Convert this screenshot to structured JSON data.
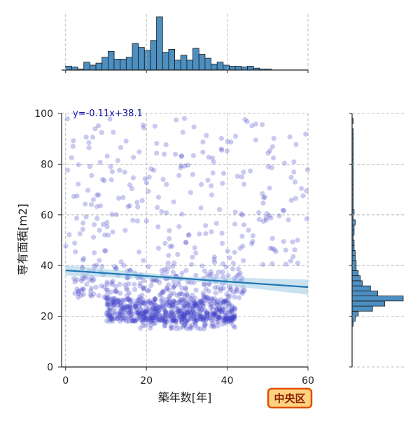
{
  "chart_data": {
    "type": "scatter",
    "xlabel": "築年数[年]",
    "ylabel": "専有面積[m2]",
    "xlim": [
      -1,
      60
    ],
    "ylim": [
      0,
      100
    ],
    "x_ticks": [
      0,
      20,
      40,
      60
    ],
    "y_ticks": [
      0,
      20,
      40,
      60,
      80,
      100
    ],
    "grid": true,
    "regression": {
      "label": "y=-0.11x+38.1",
      "slope": -0.11,
      "intercept": 38.1,
      "ci_halfwidth": [
        2.0,
        0.8,
        3.0
      ]
    },
    "badge": "中央区",
    "colors": {
      "points": "#4040c8",
      "line": "#1f77b4",
      "ci": "#9ecae1",
      "hist": "#4c8fc0",
      "badge_fill": "#ffd27f",
      "badge_stroke": "#e05000"
    },
    "marginal_x_hist": {
      "bin_width": 1.5,
      "start": 0,
      "counts": [
        4,
        3,
        1,
        8,
        5,
        7,
        13,
        19,
        11,
        11,
        13,
        27,
        23,
        20,
        30,
        54,
        18,
        21,
        10,
        15,
        10,
        22,
        16,
        12,
        6,
        8,
        5,
        4,
        4,
        3,
        4,
        2,
        1,
        1
      ]
    },
    "marginal_y_hist": {
      "bin_width": 2,
      "start": 16,
      "counts": [
        1,
        3,
        6,
        20,
        32,
        50,
        25,
        18,
        10,
        8,
        6,
        4,
        4,
        3,
        3,
        2,
        2,
        1,
        2,
        2,
        3,
        1,
        2,
        1,
        1,
        1,
        1,
        1,
        1,
        1,
        1,
        1,
        1,
        1,
        1,
        1,
        1,
        1,
        1,
        0,
        1
      ]
    },
    "seed": 7,
    "clusters": [
      {
        "n": 520,
        "x": [
          10,
          42
        ],
        "y": [
          18,
          27
        ]
      },
      {
        "n": 220,
        "x": [
          2,
          45
        ],
        "y": [
          27,
          40
        ]
      },
      {
        "n": 260,
        "x": [
          0,
          60
        ],
        "y": [
          40,
          98
        ]
      },
      {
        "n": 100,
        "x": [
          18,
          42
        ],
        "y": [
          15,
          22
        ]
      }
    ],
    "spatial_note": ""
  }
}
